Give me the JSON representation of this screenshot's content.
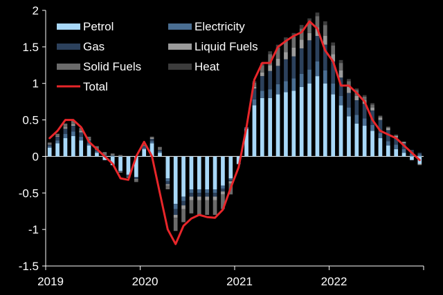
{
  "chart_data": {
    "type": "bar",
    "stacked": true,
    "title": "",
    "xlabel": "",
    "ylabel": "",
    "ylim": [
      -1.5,
      2
    ],
    "yticks": [
      -1.5,
      -1,
      -0.5,
      0,
      0.5,
      1,
      1.5,
      2
    ],
    "ytick_labels": [
      "-1.5",
      "-1",
      "-0.5",
      "0",
      "0.5",
      "1",
      "1.5",
      "2"
    ],
    "xticks": [
      "2019",
      "2020",
      "2021",
      "2022"
    ],
    "legend_position": "top-left",
    "categories": [
      "2019-01",
      "2019-02",
      "2019-03",
      "2019-04",
      "2019-05",
      "2019-06",
      "2019-07",
      "2019-08",
      "2019-09",
      "2019-10",
      "2019-11",
      "2019-12",
      "2020-01",
      "2020-02",
      "2020-03",
      "2020-04",
      "2020-05",
      "2020-06",
      "2020-07",
      "2020-08",
      "2020-09",
      "2020-10",
      "2020-11",
      "2020-12",
      "2021-01",
      "2021-02",
      "2021-03",
      "2021-04",
      "2021-05",
      "2021-06",
      "2021-07",
      "2021-08",
      "2021-09",
      "2021-10",
      "2021-11",
      "2021-12",
      "2022-01",
      "2022-02",
      "2022-03",
      "2022-04",
      "2022-05",
      "2022-06",
      "2022-07",
      "2022-08",
      "2022-09",
      "2022-10",
      "2022-11",
      "2022-12"
    ],
    "series": [
      {
        "name": "Petrol",
        "color": "#a8d8f8",
        "values": [
          0.12,
          0.18,
          0.25,
          0.28,
          0.22,
          0.15,
          0.05,
          -0.05,
          -0.12,
          -0.2,
          -0.25,
          -0.28,
          0.1,
          0.18,
          0.05,
          -0.3,
          -0.65,
          -0.55,
          -0.45,
          -0.45,
          -0.45,
          -0.45,
          -0.4,
          -0.3,
          -0.1,
          0.38,
          0.7,
          0.8,
          0.8,
          0.85,
          0.88,
          0.9,
          0.95,
          1.0,
          1.1,
          1.0,
          0.85,
          0.7,
          0.55,
          0.45,
          0.42,
          0.35,
          0.25,
          0.15,
          0.1,
          0.05,
          -0.05,
          -0.1
        ]
      },
      {
        "name": "Electricity",
        "color": "#4a6e92",
        "values": [
          0.02,
          0.04,
          0.06,
          0.06,
          0.05,
          0.03,
          0.02,
          0.01,
          0.01,
          0.0,
          -0.01,
          -0.01,
          0.02,
          0.03,
          0.02,
          -0.04,
          -0.07,
          -0.06,
          -0.05,
          -0.05,
          -0.05,
          -0.05,
          -0.04,
          -0.02,
          0.0,
          0.02,
          0.08,
          0.1,
          0.12,
          0.14,
          0.15,
          0.17,
          0.18,
          0.19,
          0.2,
          0.18,
          0.15,
          0.13,
          0.12,
          0.12,
          0.1,
          0.08,
          0.07,
          0.06,
          0.06,
          0.05,
          0.04,
          0.03
        ]
      },
      {
        "name": "Gas",
        "color": "#2c415c",
        "values": [
          0.02,
          0.05,
          0.07,
          0.08,
          0.06,
          0.04,
          0.02,
          0.01,
          0.0,
          -0.01,
          -0.02,
          -0.02,
          0.02,
          0.03,
          0.02,
          -0.04,
          -0.08,
          -0.06,
          -0.05,
          -0.05,
          -0.05,
          -0.05,
          -0.04,
          -0.02,
          0.0,
          0.0,
          0.15,
          0.2,
          0.25,
          0.25,
          0.3,
          0.3,
          0.35,
          0.4,
          0.35,
          0.35,
          0.3,
          0.25,
          0.2,
          0.2,
          0.2,
          0.2,
          0.18,
          0.15,
          0.1,
          0.08,
          0.05,
          0.02
        ]
      },
      {
        "name": "Liquid Fuels",
        "color": "#9b9b9b",
        "values": [
          0.0,
          0.01,
          0.02,
          0.02,
          0.02,
          0.01,
          0.0,
          0.0,
          0.0,
          -0.01,
          -0.01,
          -0.01,
          0.0,
          0.01,
          0.0,
          -0.02,
          -0.04,
          -0.05,
          -0.05,
          -0.05,
          -0.05,
          -0.05,
          -0.04,
          -0.03,
          0.0,
          0.0,
          0.02,
          0.05,
          0.08,
          0.1,
          0.1,
          0.12,
          0.12,
          0.1,
          0.12,
          0.12,
          0.1,
          0.1,
          0.08,
          0.06,
          0.05,
          0.04,
          0.03,
          0.03,
          0.02,
          0.02,
          0.0,
          -0.01
        ]
      },
      {
        "name": "Solid Fuels",
        "color": "#6b6b6b",
        "values": [
          0.03,
          0.03,
          0.05,
          0.05,
          0.04,
          0.04,
          0.05,
          0.04,
          0.03,
          0.02,
          0.0,
          -0.03,
          0.02,
          0.02,
          0.04,
          -0.05,
          -0.18,
          -0.18,
          -0.18,
          -0.2,
          -0.2,
          -0.2,
          -0.2,
          -0.15,
          -0.01,
          0.0,
          0.06,
          0.1,
          0.15,
          0.15,
          0.15,
          0.15,
          0.15,
          0.15,
          0.15,
          0.15,
          0.12,
          0.1,
          0.08,
          0.08,
          0.05,
          0.04,
          0.02,
          0.01,
          0.01,
          0.0,
          0.0,
          -0.01
        ]
      },
      {
        "name": "Heat",
        "color": "#3c3c3c",
        "values": [
          0.0,
          0.0,
          0.0,
          0.0,
          0.0,
          0.0,
          0.0,
          0.0,
          0.0,
          0.0,
          0.0,
          0.0,
          0.0,
          0.0,
          0.0,
          0.0,
          0.0,
          0.0,
          0.0,
          0.0,
          0.0,
          0.0,
          0.0,
          0.0,
          0.0,
          0.0,
          0.02,
          0.03,
          0.04,
          0.04,
          0.05,
          0.05,
          0.05,
          0.05,
          0.05,
          0.05,
          0.04,
          0.04,
          0.03,
          0.02,
          0.02,
          0.02,
          0.01,
          0.01,
          0.01,
          0.0,
          0.0,
          0.0
        ]
      }
    ],
    "total": {
      "name": "Total",
      "color": "#e8262a",
      "values": [
        0.25,
        0.35,
        0.5,
        0.5,
        0.4,
        0.2,
        0.1,
        0.0,
        -0.1,
        -0.3,
        -0.32,
        0.0,
        0.2,
        0.0,
        -0.5,
        -1.0,
        -1.2,
        -0.95,
        -0.85,
        -0.8,
        -0.83,
        -0.84,
        -0.73,
        -0.43,
        -0.15,
        0.4,
        1.05,
        1.28,
        1.28,
        1.5,
        1.58,
        1.65,
        1.7,
        1.85,
        1.75,
        1.45,
        1.3,
        0.97,
        0.97,
        0.87,
        0.75,
        0.5,
        0.35,
        0.3,
        0.25,
        0.15,
        0.05,
        -0.05
      ]
    }
  }
}
